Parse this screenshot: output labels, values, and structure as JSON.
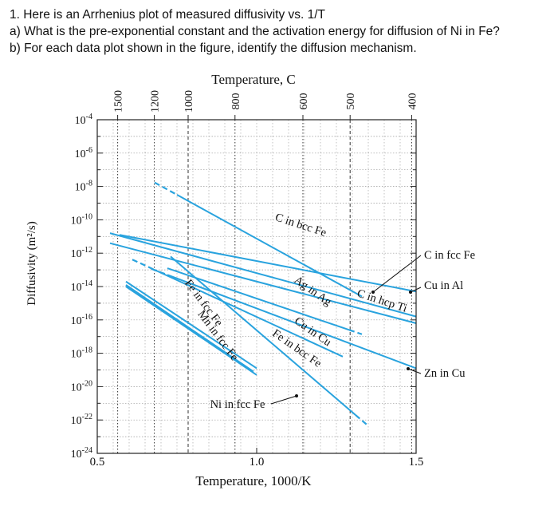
{
  "question": {
    "line1": "1. Here is an Arrhenius plot of measured diffusivity vs. 1/T",
    "line2": "a) What is the pre-exponential constant and the activation energy for diffusion of Ni in Fe?",
    "line3": "b) For each data plot shown in the figure, identify the diffusion mechanism."
  },
  "chart_data": {
    "type": "line",
    "title": "",
    "xlabel": "Temperature, 1000/K",
    "ylabel": "Diffusivity (m²/s)",
    "top_axis_label": "Temperature, C",
    "xlim": [
      0.5,
      1.5
    ],
    "ylim_log10": [
      -24,
      -4
    ],
    "log_y": true,
    "grid": true,
    "x_ticks": [
      "0.5",
      "1.0",
      "1.5"
    ],
    "y_ticks": [
      {
        "base": "10",
        "exp": "-4"
      },
      {
        "base": "10",
        "exp": "-6"
      },
      {
        "base": "10",
        "exp": "-8"
      },
      {
        "base": "10",
        "exp": "-10"
      },
      {
        "base": "10",
        "exp": "-12"
      },
      {
        "base": "10",
        "exp": "-14"
      },
      {
        "base": "10",
        "exp": "-16"
      },
      {
        "base": "10",
        "exp": "-18"
      },
      {
        "base": "10",
        "exp": "-20"
      },
      {
        "base": "10",
        "exp": "-22"
      },
      {
        "base": "10",
        "exp": "-24"
      }
    ],
    "top_ticks": [
      {
        "label": "1500",
        "x": 0.564
      },
      {
        "label": "1200",
        "x": 0.679
      },
      {
        "label": "1000",
        "x": 0.785
      },
      {
        "label": "800",
        "x": 0.932
      },
      {
        "label": "600",
        "x": 1.145
      },
      {
        "label": "500",
        "x": 1.293
      },
      {
        "label": "400",
        "x": 1.486
      }
    ],
    "series": [
      {
        "name": "C in bcc Fe",
        "x": [
          0.57,
          1.5
        ],
        "log10_y": [
          -10.9,
          -14.3
        ]
      },
      {
        "name": "C in fcc Fe",
        "x": [
          0.54,
          1.5
        ],
        "log10_y": [
          -10.8,
          -15.8
        ]
      },
      {
        "name": "Cu in Al",
        "x": [
          0.54,
          1.5
        ],
        "log10_y": [
          -11.4,
          -16.2
        ]
      },
      {
        "name": "C in hcp Ti",
        "x": [
          0.75,
          1.33
        ],
        "log10_y": [
          -8.5,
          -14.6
        ]
      },
      {
        "name": "Ag in Ag",
        "x": [
          0.72,
          1.29
        ],
        "log10_y": [
          -12.9,
          -16.6
        ]
      },
      {
        "name": "Zn in Cu",
        "x": [
          0.72,
          1.5
        ],
        "log10_y": [
          -13.3,
          -18.9
        ]
      },
      {
        "name": "Cu in Cu",
        "x": [
          0.68,
          1.27
        ],
        "log10_y": [
          -13.0,
          -18.2
        ]
      },
      {
        "name": "Fe in bcc Fe",
        "x": [
          0.73,
          1.31
        ],
        "log10_y": [
          -12.2,
          -21.7
        ]
      },
      {
        "name": "Fe in fcc Fe",
        "x": [
          0.59,
          1.0
        ],
        "log10_y": [
          -13.7,
          -18.9
        ]
      },
      {
        "name": "Mn in fcc Fe",
        "x": [
          0.59,
          0.99
        ],
        "log10_y": [
          -13.9,
          -19.1
        ]
      },
      {
        "name": "Ni in fcc Fe",
        "x": [
          0.59,
          1.0
        ],
        "log10_y": [
          -14.0,
          -19.3
        ]
      }
    ],
    "labels": [
      "C in bcc Fe",
      "C in fcc Fe",
      "Cu in Al",
      "Ag in Ag",
      "C in hcp Ti",
      "Fe in fcc Fe",
      "Cu in Cu",
      "Mn in fcc Fe",
      "Fe in bcc Fe",
      "Zn in Cu",
      "Ni in fcc Fe"
    ],
    "colors": {
      "line": "#29a3de",
      "axis": "#222222",
      "grid": "#9a9a9a"
    }
  }
}
